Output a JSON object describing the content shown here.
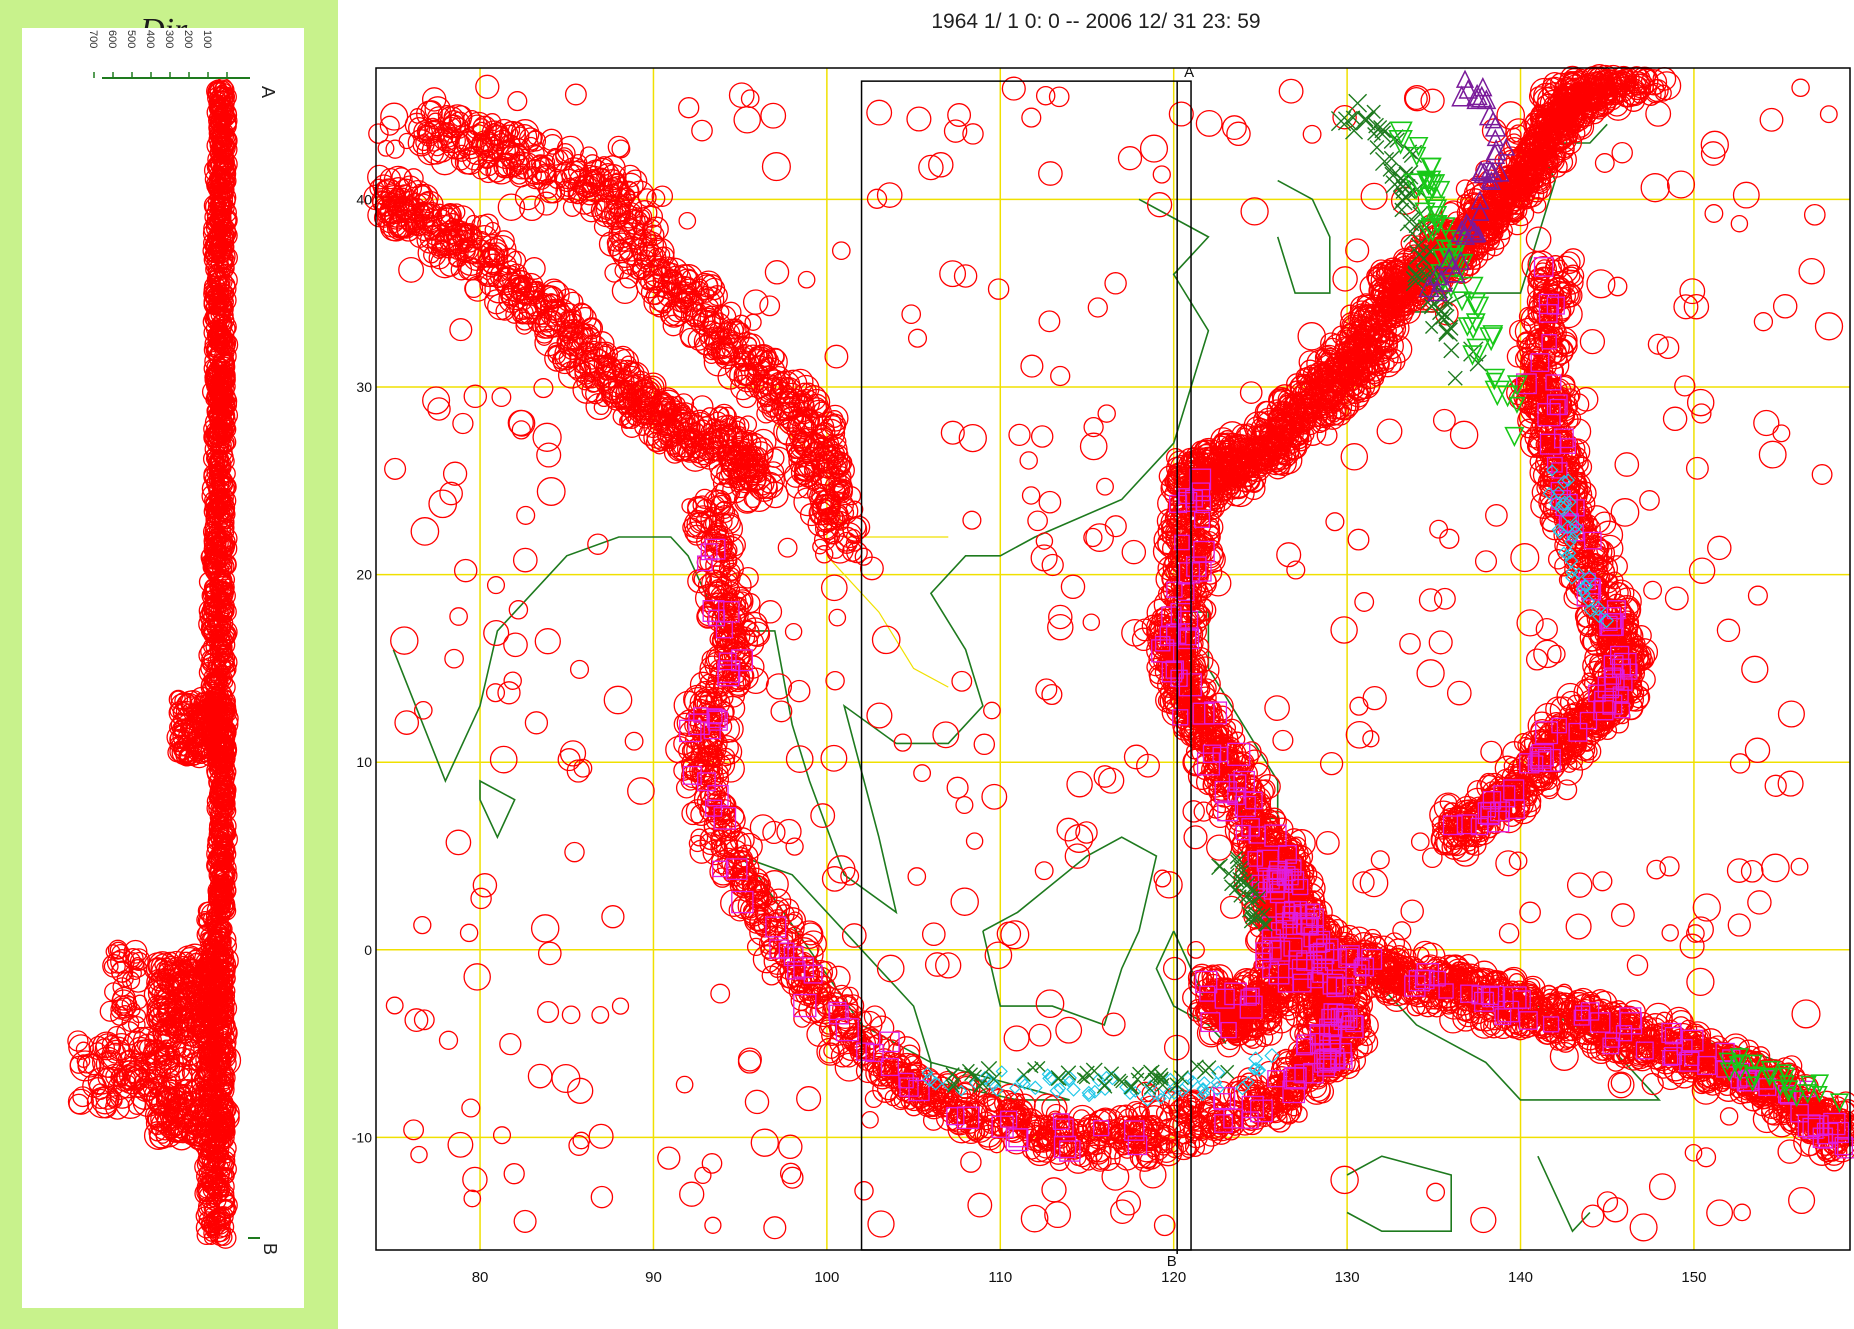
{
  "header": {
    "date_range": "1964 1/ 1  0: 0 -- 2006  12/ 31  23: 59",
    "partial_caption": "Dir"
  },
  "cross_section": {
    "depth_ticks": [
      "100",
      "200",
      "300",
      "400",
      "500",
      "600",
      "700"
    ],
    "end_a_label": "A",
    "end_b_label": "B"
  },
  "map": {
    "section_labels": {
      "a": "A",
      "b": "B"
    },
    "x_ticks": [
      "80",
      "90",
      "100",
      "110",
      "120",
      "130",
      "140",
      "150"
    ],
    "y_ticks": [
      "40",
      "30",
      "20",
      "10",
      "0",
      "-10"
    ],
    "x_range": [
      74,
      159
    ],
    "y_range": [
      -16,
      47
    ],
    "section_box": {
      "lon": [
        102,
        121
      ],
      "lat": [
        -16,
        46.3
      ]
    },
    "colors": {
      "shallow": "#ff0000",
      "intermediate": "#e01ee0",
      "deep_cyan": "#22c8e8",
      "deep_green": "#18c818",
      "very_deep": "#7a1a9a",
      "grid": "#f0e000",
      "coast": "#1e7a1e"
    },
    "legend_symbols": [
      "circle",
      "square",
      "diamond",
      "x-cross",
      "triangle-down",
      "triangle-up"
    ]
  }
}
